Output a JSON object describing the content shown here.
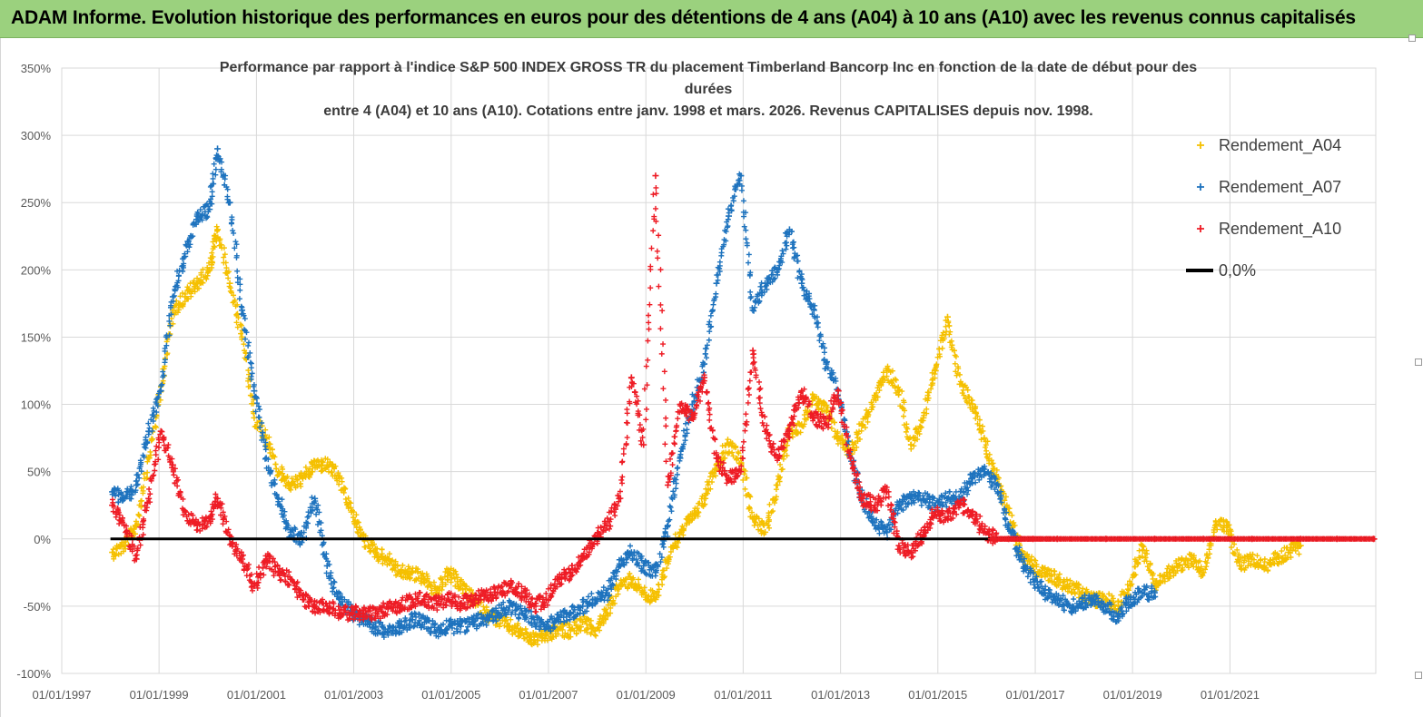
{
  "banner": {
    "title": "ADAM Informe. Evolution historique des performances en euros pour des détentions de 4 ans (A04) à 10 ans (A10) avec les revenus connus capitalisés"
  },
  "chart_data": {
    "type": "scatter",
    "title_lines": [
      "Performance par rapport à l'indice S&P 500 INDEX GROSS TR  du placement Timberland Bancorp Inc en fonction de la date de début pour des",
      "durées",
      "entre 4 (A04) et 10 ans (A10). Cotations entre janv. 1998 et mars. 2026. Revenus CAPITALISES depuis nov. 1998."
    ],
    "x_ticks": [
      "01/01/1997",
      "01/01/1999",
      "01/01/2001",
      "01/01/2003",
      "01/01/2005",
      "01/01/2007",
      "01/01/2009",
      "01/01/2011",
      "01/01/2013",
      "01/01/2015",
      "01/01/2017",
      "01/01/2019",
      "01/01/2021"
    ],
    "y_ticks": [
      "350%",
      "300%",
      "250%",
      "200%",
      "150%",
      "100%",
      "50%",
      "0%",
      "-50%",
      "-100%"
    ],
    "xlim": [
      "1997-01-01",
      "2023-12-31"
    ],
    "ylim": [
      -100,
      350
    ],
    "grid": true,
    "legend_position": "right",
    "series": [
      {
        "name": "Rendement_A04",
        "color": "#f5c000",
        "marker": "+",
        "points": [
          [
            "1998-01",
            -10
          ],
          [
            "1998-04",
            -5
          ],
          [
            "1998-07",
            10
          ],
          [
            "1998-10",
            60
          ],
          [
            "1999-01",
            110
          ],
          [
            "1999-04",
            170
          ],
          [
            "1999-07",
            180
          ],
          [
            "1999-10",
            190
          ],
          [
            "2000-01",
            200
          ],
          [
            "2000-03",
            230
          ],
          [
            "2000-06",
            190
          ],
          [
            "2000-09",
            150
          ],
          [
            "2000-12",
            90
          ],
          [
            "2001-03",
            75
          ],
          [
            "2001-06",
            50
          ],
          [
            "2001-09",
            40
          ],
          [
            "2001-12",
            45
          ],
          [
            "2002-03",
            55
          ],
          [
            "2002-06",
            55
          ],
          [
            "2002-09",
            45
          ],
          [
            "2002-12",
            20
          ],
          [
            "2003-03",
            0
          ],
          [
            "2003-06",
            -10
          ],
          [
            "2003-09",
            -15
          ],
          [
            "2003-12",
            -25
          ],
          [
            "2004-03",
            -25
          ],
          [
            "2004-06",
            -30
          ],
          [
            "2004-09",
            -40
          ],
          [
            "2004-12",
            -25
          ],
          [
            "2005-03",
            -35
          ],
          [
            "2005-06",
            -45
          ],
          [
            "2005-09",
            -55
          ],
          [
            "2005-12",
            -60
          ],
          [
            "2006-03",
            -65
          ],
          [
            "2006-06",
            -70
          ],
          [
            "2006-09",
            -75
          ],
          [
            "2006-12",
            -72
          ],
          [
            "2007-03",
            -68
          ],
          [
            "2007-06",
            -68
          ],
          [
            "2007-09",
            -62
          ],
          [
            "2007-12",
            -68
          ],
          [
            "2008-03",
            -55
          ],
          [
            "2008-06",
            -35
          ],
          [
            "2008-09",
            -30
          ],
          [
            "2008-12",
            -40
          ],
          [
            "2009-03",
            -45
          ],
          [
            "2009-06",
            -15
          ],
          [
            "2009-09",
            5
          ],
          [
            "2009-12",
            15
          ],
          [
            "2010-03",
            30
          ],
          [
            "2010-06",
            55
          ],
          [
            "2010-09",
            70
          ],
          [
            "2010-12",
            60
          ],
          [
            "2011-03",
            15
          ],
          [
            "2011-06",
            5
          ],
          [
            "2011-09",
            40
          ],
          [
            "2011-12",
            80
          ],
          [
            "2012-03",
            85
          ],
          [
            "2012-06",
            105
          ],
          [
            "2012-09",
            95
          ],
          [
            "2012-12",
            75
          ],
          [
            "2013-03",
            65
          ],
          [
            "2013-06",
            85
          ],
          [
            "2013-09",
            105
          ],
          [
            "2013-12",
            125
          ],
          [
            "2014-03",
            110
          ],
          [
            "2014-06",
            70
          ],
          [
            "2014-09",
            90
          ],
          [
            "2014-12",
            125
          ],
          [
            "2015-03",
            165
          ],
          [
            "2015-06",
            115
          ],
          [
            "2015-09",
            100
          ],
          [
            "2015-12",
            75
          ],
          [
            "2016-03",
            45
          ],
          [
            "2016-06",
            20
          ],
          [
            "2016-09",
            -10
          ],
          [
            "2016-12",
            -20
          ],
          [
            "2017-03",
            -25
          ],
          [
            "2017-06",
            -30
          ],
          [
            "2017-09",
            -35
          ],
          [
            "2017-12",
            -40
          ],
          [
            "2018-03",
            -45
          ],
          [
            "2018-06",
            -45
          ],
          [
            "2018-09",
            -50
          ],
          [
            "2018-12",
            -35
          ],
          [
            "2019-03",
            -5
          ],
          [
            "2019-06",
            -35
          ],
          [
            "2019-09",
            -25
          ],
          [
            "2019-12",
            -20
          ],
          [
            "2020-03",
            -15
          ],
          [
            "2020-06",
            -25
          ],
          [
            "2020-09",
            10
          ],
          [
            "2020-12",
            10
          ],
          [
            "2021-03",
            -20
          ],
          [
            "2021-06",
            -15
          ],
          [
            "2021-09",
            -20
          ],
          [
            "2021-12",
            -15
          ],
          [
            "2022-03",
            -10
          ],
          [
            "2022-06",
            -5
          ]
        ]
      },
      {
        "name": "Rendement_A07",
        "color": "#1e73be",
        "marker": "+",
        "points": [
          [
            "1998-01",
            35
          ],
          [
            "1998-04",
            30
          ],
          [
            "1998-07",
            40
          ],
          [
            "1998-10",
            80
          ],
          [
            "1999-01",
            110
          ],
          [
            "1999-04",
            180
          ],
          [
            "1999-07",
            210
          ],
          [
            "1999-10",
            240
          ],
          [
            "2000-01",
            245
          ],
          [
            "2000-03",
            290
          ],
          [
            "2000-06",
            250
          ],
          [
            "2000-09",
            170
          ],
          [
            "2000-12",
            110
          ],
          [
            "2001-03",
            60
          ],
          [
            "2001-06",
            30
          ],
          [
            "2001-09",
            5
          ],
          [
            "2001-12",
            0
          ],
          [
            "2002-03",
            30
          ],
          [
            "2002-06",
            -20
          ],
          [
            "2002-09",
            -45
          ],
          [
            "2002-12",
            -55
          ],
          [
            "2003-03",
            -60
          ],
          [
            "2003-06",
            -65
          ],
          [
            "2003-09",
            -70
          ],
          [
            "2003-12",
            -65
          ],
          [
            "2004-03",
            -60
          ],
          [
            "2004-06",
            -62
          ],
          [
            "2004-09",
            -68
          ],
          [
            "2004-12",
            -65
          ],
          [
            "2005-03",
            -65
          ],
          [
            "2005-06",
            -62
          ],
          [
            "2005-09",
            -60
          ],
          [
            "2005-12",
            -55
          ],
          [
            "2006-03",
            -50
          ],
          [
            "2006-06",
            -55
          ],
          [
            "2006-09",
            -60
          ],
          [
            "2006-12",
            -65
          ],
          [
            "2007-03",
            -60
          ],
          [
            "2007-06",
            -55
          ],
          [
            "2007-09",
            -50
          ],
          [
            "2007-12",
            -45
          ],
          [
            "2008-03",
            -40
          ],
          [
            "2008-06",
            -20
          ],
          [
            "2008-09",
            -10
          ],
          [
            "2008-12",
            -20
          ],
          [
            "2009-03",
            -25
          ],
          [
            "2009-06",
            10
          ],
          [
            "2009-09",
            60
          ],
          [
            "2009-12",
            100
          ],
          [
            "2010-03",
            130
          ],
          [
            "2010-06",
            190
          ],
          [
            "2010-09",
            240
          ],
          [
            "2010-12",
            270
          ],
          [
            "2011-03",
            170
          ],
          [
            "2011-06",
            190
          ],
          [
            "2011-09",
            200
          ],
          [
            "2011-12",
            230
          ],
          [
            "2012-03",
            190
          ],
          [
            "2012-06",
            170
          ],
          [
            "2012-09",
            130
          ],
          [
            "2012-12",
            110
          ],
          [
            "2013-03",
            60
          ],
          [
            "2013-06",
            30
          ],
          [
            "2013-09",
            10
          ],
          [
            "2013-12",
            5
          ],
          [
            "2014-03",
            25
          ],
          [
            "2014-06",
            30
          ],
          [
            "2014-09",
            30
          ],
          [
            "2014-12",
            25
          ],
          [
            "2015-03",
            30
          ],
          [
            "2015-06",
            30
          ],
          [
            "2015-09",
            45
          ],
          [
            "2015-12",
            50
          ],
          [
            "2016-03",
            40
          ],
          [
            "2016-06",
            10
          ],
          [
            "2016-09",
            -15
          ],
          [
            "2016-12",
            -30
          ],
          [
            "2017-03",
            -40
          ],
          [
            "2017-06",
            -45
          ],
          [
            "2017-09",
            -50
          ],
          [
            "2017-12",
            -48
          ],
          [
            "2018-03",
            -45
          ],
          [
            "2018-06",
            -50
          ],
          [
            "2018-09",
            -58
          ],
          [
            "2018-12",
            -45
          ],
          [
            "2019-03",
            -40
          ],
          [
            "2019-06",
            -40
          ]
        ]
      },
      {
        "name": "Rendement_A10",
        "color": "#ee1c25",
        "marker": "+",
        "points": [
          [
            "1998-01",
            25
          ],
          [
            "1998-04",
            10
          ],
          [
            "1998-07",
            -15
          ],
          [
            "1998-10",
            30
          ],
          [
            "1999-01",
            80
          ],
          [
            "1999-04",
            55
          ],
          [
            "1999-07",
            20
          ],
          [
            "1999-10",
            10
          ],
          [
            "2000-01",
            15
          ],
          [
            "2000-03",
            30
          ],
          [
            "2000-06",
            0
          ],
          [
            "2000-09",
            -15
          ],
          [
            "2000-12",
            -35
          ],
          [
            "2001-03",
            -15
          ],
          [
            "2001-06",
            -25
          ],
          [
            "2001-09",
            -30
          ],
          [
            "2001-12",
            -45
          ],
          [
            "2002-03",
            -50
          ],
          [
            "2002-06",
            -50
          ],
          [
            "2002-09",
            -55
          ],
          [
            "2002-12",
            -55
          ],
          [
            "2003-03",
            -55
          ],
          [
            "2003-06",
            -55
          ],
          [
            "2003-09",
            -52
          ],
          [
            "2003-12",
            -50
          ],
          [
            "2004-03",
            -45
          ],
          [
            "2004-06",
            -45
          ],
          [
            "2004-09",
            -48
          ],
          [
            "2004-12",
            -45
          ],
          [
            "2005-03",
            -48
          ],
          [
            "2005-06",
            -45
          ],
          [
            "2005-09",
            -42
          ],
          [
            "2005-12",
            -40
          ],
          [
            "2006-03",
            -35
          ],
          [
            "2006-06",
            -40
          ],
          [
            "2006-09",
            -50
          ],
          [
            "2006-12",
            -45
          ],
          [
            "2007-03",
            -30
          ],
          [
            "2007-06",
            -25
          ],
          [
            "2007-09",
            -15
          ],
          [
            "2007-12",
            0
          ],
          [
            "2008-03",
            10
          ],
          [
            "2008-06",
            30
          ],
          [
            "2008-09",
            120
          ],
          [
            "2008-12",
            70
          ],
          [
            "2009-03",
            270
          ],
          [
            "2009-06",
            40
          ],
          [
            "2009-09",
            100
          ],
          [
            "2009-12",
            90
          ],
          [
            "2010-03",
            120
          ],
          [
            "2010-06",
            60
          ],
          [
            "2010-09",
            45
          ],
          [
            "2010-12",
            50
          ],
          [
            "2011-03",
            140
          ],
          [
            "2011-06",
            80
          ],
          [
            "2011-09",
            60
          ],
          [
            "2011-12",
            80
          ],
          [
            "2012-03",
            110
          ],
          [
            "2012-06",
            90
          ],
          [
            "2012-09",
            85
          ],
          [
            "2012-12",
            110
          ],
          [
            "2013-03",
            60
          ],
          [
            "2013-06",
            30
          ],
          [
            "2013-09",
            25
          ],
          [
            "2013-12",
            35
          ],
          [
            "2014-03",
            -5
          ],
          [
            "2014-06",
            -10
          ],
          [
            "2014-09",
            5
          ],
          [
            "2014-12",
            20
          ],
          [
            "2015-03",
            15
          ],
          [
            "2015-06",
            25
          ],
          [
            "2015-09",
            20
          ],
          [
            "2015-12",
            5
          ],
          [
            "2016-03",
            0
          ],
          [
            "2016-06",
            0
          ],
          [
            "2016-09",
            0
          ],
          [
            "2016-12",
            0
          ],
          [
            "2017-06",
            0
          ],
          [
            "2018-06",
            0
          ],
          [
            "2019-06",
            0
          ],
          [
            "2020-06",
            0
          ],
          [
            "2021-06",
            0
          ],
          [
            "2022-06",
            0
          ],
          [
            "2023-03",
            0
          ],
          [
            "2023-12",
            0
          ]
        ]
      },
      {
        "name": "0,0%",
        "color": "#000000",
        "marker": "line",
        "points": [
          [
            "1998-01",
            0
          ],
          [
            "2023-12",
            0
          ]
        ]
      }
    ]
  }
}
